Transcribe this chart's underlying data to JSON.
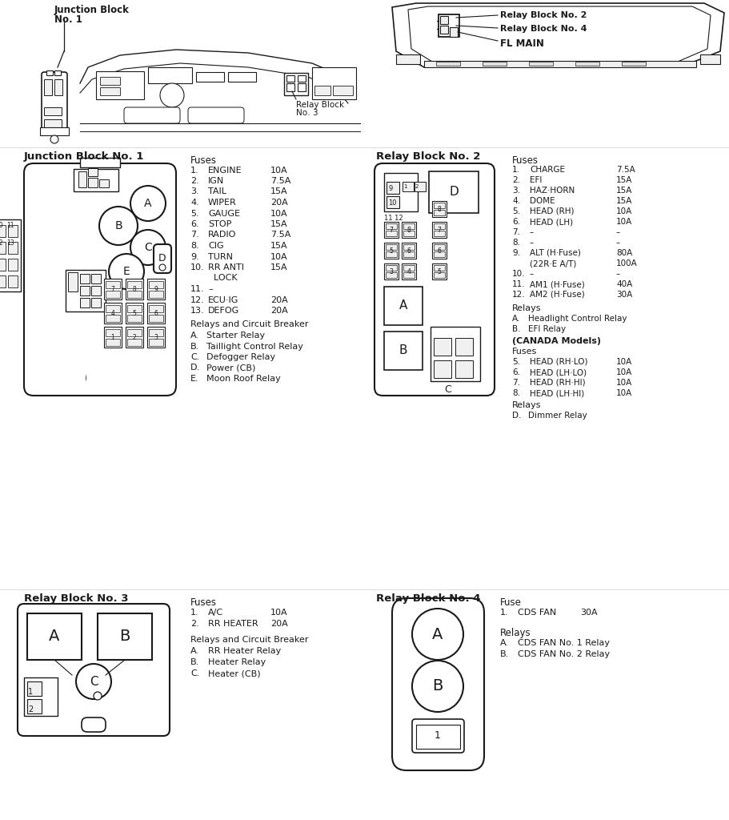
{
  "bg_color": "#ffffff",
  "line_color": "#1a1a1a",
  "jb1_fuses": [
    [
      "1.",
      "ENGINE",
      "10A"
    ],
    [
      "2.",
      "IGN",
      "7.5A"
    ],
    [
      "3.",
      "TAIL",
      "15A"
    ],
    [
      "4.",
      "WIPER",
      "20A"
    ],
    [
      "5.",
      "GAUGE",
      "10A"
    ],
    [
      "6.",
      "STOP",
      "15A"
    ],
    [
      "7.",
      "RADIO",
      "7.5A"
    ],
    [
      "8.",
      "CIG",
      "15A"
    ],
    [
      "9.",
      "TURN",
      "10A"
    ],
    [
      "10.",
      "RR ANTI",
      "15A"
    ],
    [
      "",
      "  LOCK",
      ""
    ],
    [
      "11.",
      "–",
      ""
    ],
    [
      "12.",
      "ECU·IG",
      "20A"
    ],
    [
      "13.",
      "DEFOG",
      "20A"
    ]
  ],
  "jb1_relays": [
    [
      "A.",
      "Starter Relay"
    ],
    [
      "B.",
      "Taillight Control Relay"
    ],
    [
      "C.",
      "Defogger Relay"
    ],
    [
      "D.",
      "Power (CB)"
    ],
    [
      "E.",
      "Moon Roof Relay"
    ]
  ],
  "rb2_fuses": [
    [
      "1.",
      "CHARGE",
      "7.5A"
    ],
    [
      "2.",
      "EFI",
      "15A"
    ],
    [
      "3.",
      "HAZ·HORN",
      "15A"
    ],
    [
      "4.",
      "DOME",
      "15A"
    ],
    [
      "5.",
      "HEAD (RH)",
      "10A"
    ],
    [
      "6.",
      "HEAD (LH)",
      "10A"
    ],
    [
      "7.",
      "–",
      "–"
    ],
    [
      "8.",
      "–",
      "–"
    ],
    [
      "9.",
      "ALT (H·Fuse)",
      "80A"
    ],
    [
      "",
      "(22R·E A/T)",
      "100A"
    ],
    [
      "10.",
      "–",
      "–"
    ],
    [
      "11.",
      "AM1 (H·Fuse)",
      "40A"
    ],
    [
      "12.",
      "AM2 (H·Fuse)",
      "30A"
    ]
  ],
  "rb2_relays": [
    [
      "A.",
      "Headlight Control Relay"
    ],
    [
      "B.",
      "EFI Relay"
    ]
  ],
  "rb2_canada_fuses": [
    [
      "5.",
      "HEAD (RH·LO)",
      "10A"
    ],
    [
      "6.",
      "HEAD (LH·LO)",
      "10A"
    ],
    [
      "7.",
      "HEAD (RH·HI)",
      "10A"
    ],
    [
      "8.",
      "HEAD (LH·HI)",
      "10A"
    ]
  ],
  "rb2_canada_relays": [
    [
      "D.",
      "Dimmer Relay"
    ]
  ],
  "rb3_fuses": [
    [
      "1.",
      "A/C",
      "10A"
    ],
    [
      "2.",
      "RR HEATER",
      "20A"
    ]
  ],
  "rb3_relays": [
    [
      "A.",
      "RR Heater Relay"
    ],
    [
      "B.",
      "Heater Relay"
    ],
    [
      "C.",
      "Heater (CB)"
    ]
  ],
  "rb4_fuses": [
    [
      "1.",
      "CDS FAN",
      "30A"
    ]
  ],
  "rb4_relays": [
    [
      "A.",
      "CDS FAN No. 1 Relay"
    ],
    [
      "B.",
      "CDS FAN No. 2 Relay"
    ]
  ]
}
